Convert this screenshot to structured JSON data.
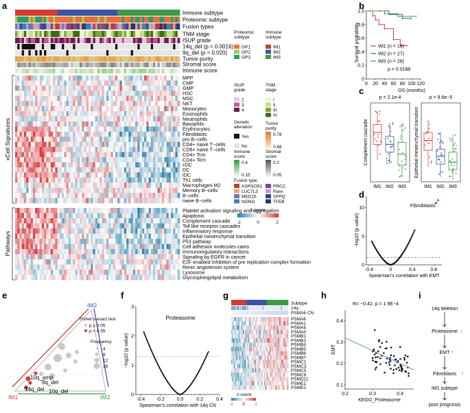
{
  "panel_letters": [
    "a",
    "b",
    "c",
    "d",
    "e",
    "f",
    "g",
    "h",
    "i"
  ],
  "panel_a": {
    "annotation_rows": [
      "Immune subtype",
      "Proteomic subtype",
      "Fusion types",
      "TNM stage",
      "ISUP grade",
      "14q_del (p = 0.0016)",
      "9q_del (p = 0.020)",
      "Tumor purity",
      "Stromal score",
      "Immune score"
    ],
    "xcell_title": "xCell Signatures",
    "xcell_rows": [
      "MPP",
      "CMP",
      "GMP",
      "HSC",
      "MSC",
      "NKT",
      "Monocytes",
      "Eosinophils",
      "Neutrophils",
      "Basophils",
      "Erythrocytes",
      "Fibroblasts",
      "pro B−cells",
      "CD4+ naive T−cells",
      "CD8+ naive T−cells",
      "CD4+ Tcm",
      "CD4+ Tem",
      "cDC",
      "DC",
      "iDC",
      "Th1 cells",
      "Macrophages M2",
      "Memory B−cells",
      "B−cells",
      "naive B−cells"
    ],
    "pathway_title": "Pathways",
    "pathway_rows": [
      "Platelet activation signaling and aggregation",
      "Apoptosis",
      "Complement cascade",
      "Toll like receptor cascades",
      "Inflammatory response",
      "Epithelial mesenchymal transition",
      "P53 pathway",
      "Cell adhesion molecules cams",
      "Immunoregulatory interactions",
      "Signaling by EGFR in cancer",
      "E2F enabled inhibition of pre replication complex formation",
      "Renin angiotensin system",
      "Lysosome",
      "Glycosphingolipid metabolism"
    ],
    "legends": {
      "proteomic": {
        "title": [
          "Proteomic",
          "subtype"
        ],
        "items": [
          "GP1",
          "GP2",
          "GP3"
        ],
        "colors": [
          "#e7713a",
          "#a3cc50",
          "#2e9a6a"
        ]
      },
      "immune": {
        "title": [
          "Immune",
          "subtype"
        ],
        "items": [
          "IM1",
          "IM2",
          "IM3"
        ],
        "colors": [
          "#d23c33",
          "#3b53a4",
          "#3c9a47"
        ]
      },
      "isup": {
        "title": [
          "ISUP",
          "grade"
        ],
        "items": [
          "2",
          "3",
          "4"
        ],
        "colors": [
          "#e7c7dc",
          "#c05a9a",
          "#6d1a52"
        ]
      },
      "tnm": {
        "title": [
          "TNM",
          "stage"
        ],
        "items": [
          "I",
          "II",
          "III",
          "IV"
        ],
        "colors": [
          "#eef5d5",
          "#c5de8e",
          "#7da637",
          "#3f6a17"
        ]
      },
      "genetic": {
        "title": [
          "Genetic",
          "alteration"
        ],
        "items": [
          "Yes",
          "No"
        ],
        "colors": [
          "#111111",
          "#e6e6e6"
        ]
      },
      "purity": {
        "title": [
          "Tumor",
          "purity"
        ],
        "ticks": [
          "0.78",
          "0.68"
        ]
      },
      "immune_score": {
        "title": [
          "Immune",
          "score"
        ],
        "ticks": [
          "0.4",
          "0.15"
        ]
      },
      "stromal_score": {
        "title": [
          "Stromal",
          "score"
        ],
        "ticks": [
          "0.2",
          "0.05"
        ]
      },
      "fusion": {
        "title": [
          "Fusion type"
        ],
        "items": [
          "ASPSCR1",
          "LUC7L3",
          "MED15",
          "NONO",
          "PRCC",
          "Rare",
          "SFPQ",
          "TFEB"
        ],
        "colors": [
          "#c23a3a",
          "#e8a86b",
          "#8a6bb6",
          "#3f7fb6",
          "#7b3f9e",
          "#b6a0c9",
          "#2d4b8c",
          "#1f3a6b"
        ]
      },
      "zscore": {
        "title": "z-score",
        "ticks": [
          "-2",
          "0",
          "2"
        ]
      }
    }
  },
  "panel_b": {
    "chart_data": {
      "type": "line",
      "xlabel": "OS (months)",
      "ylabel": "Survival probability",
      "xlim": [
        0,
        120
      ],
      "ylim": [
        0,
        1.0
      ],
      "xticks": [
        "0",
        "20",
        "40",
        "60",
        "80",
        "100",
        "120"
      ],
      "yticks": [
        "0",
        "0.2",
        "0.4",
        "0.6",
        "0.8",
        "1.0"
      ],
      "series": [
        {
          "name": "IM1 (n = 19)",
          "color": "#d23c33",
          "x": [
            0,
            8,
            14,
            20,
            28,
            40,
            60,
            75,
            90
          ],
          "y": [
            1.0,
            1.0,
            0.93,
            0.87,
            0.8,
            0.74,
            0.58,
            0.49,
            0.49
          ]
        },
        {
          "name": "IM2 (n = 27)",
          "color": "#3b53a4",
          "x": [
            0,
            30,
            50,
            65,
            80,
            100
          ],
          "y": [
            1.0,
            1.0,
            0.95,
            0.95,
            0.89,
            0.89
          ]
        },
        {
          "name": "IM3 (n = 28)",
          "color": "#3c9a47",
          "x": [
            0,
            40,
            70,
            110
          ],
          "y": [
            1.0,
            0.96,
            0.92,
            0.92
          ]
        }
      ],
      "annotation": "p = 0.0188",
      "legend": "bottom-left"
    }
  },
  "panel_c": {
    "chart_data": [
      {
        "type": "box",
        "ylabel": "Complement cascade",
        "pvalue": "p = 2.1e-4",
        "categories": [
          "IM1",
          "IM2",
          "IM3"
        ],
        "colors": [
          "#d23c33",
          "#3b53a4",
          "#3c9a47"
        ],
        "stats": [
          {
            "min": 0.22,
            "q1": 0.38,
            "median": 0.5,
            "q3": 0.58,
            "max": 0.72
          },
          {
            "min": 0.18,
            "q1": 0.3,
            "median": 0.38,
            "q3": 0.46,
            "max": 0.6
          },
          {
            "min": 0.05,
            "q1": 0.17,
            "median": 0.28,
            "q3": 0.4,
            "max": 0.6
          }
        ]
      },
      {
        "type": "box",
        "ylabel": "Epithelial mesenchymal transition",
        "pvalue": "p = 9.6e−5",
        "categories": [
          "IM1",
          "IM2",
          "IM3"
        ],
        "colors": [
          "#d23c33",
          "#3b53a4",
          "#3c9a47"
        ],
        "stats": [
          {
            "min": 0.15,
            "q1": 0.32,
            "median": 0.42,
            "q3": 0.5,
            "max": 0.62
          },
          {
            "min": 0.05,
            "q1": 0.18,
            "median": 0.26,
            "q3": 0.33,
            "max": 0.5
          },
          {
            "min": 0.02,
            "q1": 0.12,
            "median": 0.2,
            "q3": 0.3,
            "max": 0.48
          }
        ]
      }
    ]
  },
  "panel_d": {
    "chart_data": {
      "type": "scatter",
      "xlabel": "Spearman’s correlation with EMT",
      "ylabel": "−log10 (p value)",
      "xlim": [
        -0.45,
        0.95
      ],
      "ylim": [
        0,
        12
      ],
      "xticks": [
        "-0.4",
        "0",
        "0.4",
        "0.8"
      ],
      "yticks": [
        "0",
        "5",
        "10"
      ],
      "threshold": 1.3,
      "highlight": {
        "label": "Fibroblasts",
        "x": 0.88,
        "y": 11.3
      }
    }
  },
  "panel_e": {
    "vertices": [
      "IM2",
      "IM1",
      "IM3"
    ],
    "legend_title": "Fisher’s exact test",
    "legend_items": [
      "p ≥ 0.05",
      "p < 0.05"
    ],
    "frequency_title": "Frequency",
    "frequency_items": [
      "4",
      "8",
      "12",
      "16"
    ],
    "labels": [
      "10q_amp",
      "9q_del",
      "14q_del",
      "10q_del"
    ]
  },
  "panel_f": {
    "chart_data": {
      "type": "scatter",
      "xlabel": "Spearman’s correlation with 14q CN",
      "ylabel": "−log10 (p value)",
      "xlim": [
        -0.45,
        0.4
      ],
      "ylim": [
        0,
        3
      ],
      "xticks": [
        "-0.4",
        "-0.2",
        "0.0",
        "0.2",
        "0.4"
      ],
      "yticks": [
        "0",
        "1",
        "2",
        "3"
      ],
      "threshold": 1.3,
      "annotation": "Proteasome"
    }
  },
  "panel_g": {
    "annotation_rows": [
      "Subtype",
      "14q",
      "PSMA6 CN"
    ],
    "genes": [
      "PSMA6",
      "PSMA1",
      "PSMA4",
      "PSMA5",
      "PSMB1",
      "PSMB3",
      "PSMB4",
      "PSMB5",
      "PSMB6",
      "PSMB7",
      "PSMC1",
      "PSMC3",
      "PSMC5",
      "PSMC6",
      "PSMD11",
      "PSME1",
      "PSME2"
    ],
    "zscore": {
      "title": "z-score",
      "ticks": [
        "-2",
        "0",
        "2"
      ]
    }
  },
  "panel_h": {
    "chart_data": {
      "type": "scatter",
      "xlabel": "KEGG_Proteasome",
      "ylabel": "EMT",
      "xlim": [
        0.2,
        0.45
      ],
      "ylim": [
        0.08,
        0.45
      ],
      "xticks": [
        "0.2",
        "0.3",
        "0.4"
      ],
      "yticks": [
        "0.1",
        "0.2",
        "0.3",
        "0.4"
      ],
      "annotation": "R= −0.42, p = 1.9E−4",
      "fit": {
        "x": [
          0.2,
          0.45
        ],
        "y": [
          0.32,
          0.17
        ]
      }
    }
  },
  "panel_i": {
    "steps": [
      "14q deletion",
      "Proteasome",
      "EMT",
      "Fibroblasts",
      "IM1 subtype",
      "poor prognosis"
    ],
    "markers": [
      "",
      "↓",
      "↑",
      "↑",
      "",
      ""
    ],
    "marker_colors": [
      "#222",
      "#3b53a4",
      "#d23c33",
      "#d23c33",
      "#222",
      "#222"
    ]
  }
}
